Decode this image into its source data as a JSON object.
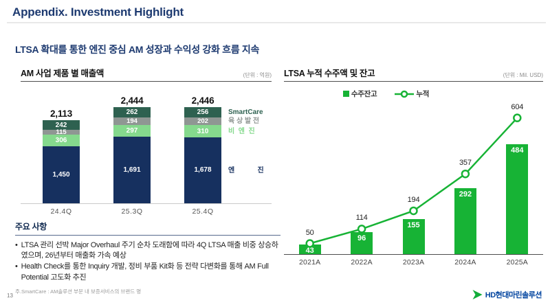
{
  "header": {
    "title": "Appendix. Investment Highlight"
  },
  "subtitle": "LTSA 확대를 통한 엔진 중심 AM 성장과 수익성 강화 흐름 지속",
  "left_panel": {
    "title": "AM 사업 제품 별 매출액",
    "unit": "(단위 : 억원)"
  },
  "right_panel": {
    "title": "LTSA 누적 수주액 및 잔고",
    "unit": "(단위 : Mil. USD)",
    "legend": {
      "bar": "수주잔고",
      "line": "누적"
    }
  },
  "notes": {
    "title": "주요 사항",
    "bullets": [
      "LTSA 관리 선박 Major Overhaul 주기 순차 도래함에 따라 4Q LTSA 매출 비중 상승하였으며, 26년부터 매출화 가속 예상",
      "Health Check를 통한 Inquiry 개발, 정비 부품 Kit화 등 전략 다변화를 통해 AM Full Potential 고도화 추진"
    ],
    "footnote": "주.SmartCare : AM솔루션 부문 내 보증서비스의 브랜드 명"
  },
  "page_number": "13",
  "logo_text": "HD현대마린솔루션",
  "colors": {
    "navy": "#16305f",
    "dark_green": "#2e6150",
    "gray": "#8f9693",
    "light_green": "#85d98d",
    "green": "#17b335",
    "title_blue": "#1d3a70",
    "logo_blue": "#0345a0"
  },
  "chart_data": [
    {
      "type": "bar",
      "subtype": "stacked",
      "title": "AM 사업 제품 별 매출액",
      "unit": "억원",
      "categories": [
        "24.4Q",
        "25.3Q",
        "25.4Q"
      ],
      "totals": [
        2113,
        2444,
        2446
      ],
      "series": [
        {
          "name": "엔진",
          "legend_label": "엔            진",
          "color": "#16305f",
          "values": [
            1450,
            1691,
            1678
          ]
        },
        {
          "name": "비엔진",
          "legend_label": "비  엔  진",
          "color": "#85d98d",
          "values": [
            306,
            297,
            310
          ]
        },
        {
          "name": "육상발전",
          "legend_label": "육 상 발 전",
          "color": "#8f9693",
          "values": [
            115,
            194,
            202
          ]
        },
        {
          "name": "SmartCare",
          "legend_label": "SmartCare",
          "color": "#2e6150",
          "values": [
            242,
            262,
            256
          ]
        }
      ],
      "legend_position": "right",
      "grid": false
    },
    {
      "type": "bar+line",
      "title": "LTSA 누적 수주액 및 잔고",
      "unit": "Mil. USD",
      "categories": [
        "2021A",
        "2022A",
        "2023A",
        "2024A",
        "2025A"
      ],
      "series": [
        {
          "name": "수주잔고",
          "type": "bar",
          "color": "#17b335",
          "values": [
            43,
            96,
            155,
            292,
            484
          ]
        },
        {
          "name": "누적",
          "type": "line",
          "color": "#17b335",
          "marker": "open-circle",
          "values": [
            50,
            114,
            194,
            357,
            604
          ]
        }
      ],
      "legend_position": "top",
      "grid": false
    }
  ]
}
